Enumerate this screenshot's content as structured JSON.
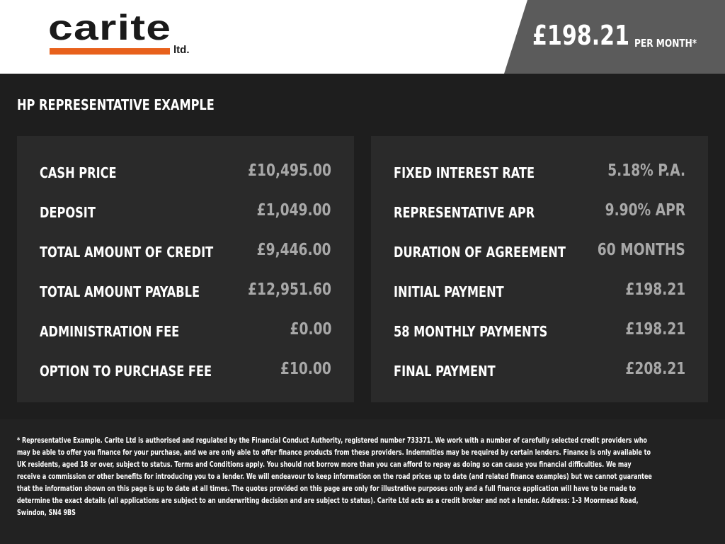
{
  "brand": {
    "name": "carite",
    "suffix": "ltd.",
    "accent": "#e8611c"
  },
  "header": {
    "price": "£198.21",
    "per_month": "PER MONTH*"
  },
  "title": "HP REPRESENTATIVE EXAMPLE",
  "left": [
    {
      "label": "CASH PRICE",
      "value": "£10,495.00"
    },
    {
      "label": "DEPOSIT",
      "value": "£1,049.00"
    },
    {
      "label": "TOTAL AMOUNT OF CREDIT",
      "value": "£9,446.00"
    },
    {
      "label": "TOTAL AMOUNT PAYABLE",
      "value": "£12,951.60"
    },
    {
      "label": "ADMINISTRATION FEE",
      "value": "£0.00"
    },
    {
      "label": "OPTION TO PURCHASE FEE",
      "value": "£10.00"
    }
  ],
  "right": [
    {
      "label": "FIXED INTEREST RATE",
      "value": "5.18% P.A."
    },
    {
      "label": "REPRESENTATIVE APR",
      "value": "9.90% APR"
    },
    {
      "label": "DURATION OF AGREEMENT",
      "value": "60 MONTHS"
    },
    {
      "label": "INITIAL PAYMENT",
      "value": "£198.21"
    },
    {
      "label": "58 MONTHLY PAYMENTS",
      "value": "£198.21"
    },
    {
      "label": "FINAL PAYMENT",
      "value": "£208.21"
    }
  ],
  "disclaimer": "* Representative Example. Carite Ltd is authorised and regulated by the Financial Conduct Authority, registered number 733371. We work with a number of carefully selected credit providers who may be able to offer you finance for your purchase, and we are only able to offer finance products from these providers. Indemnities may be required by certain lenders. Finance is only available to UK residents, aged 18 or over, subject to status. Terms and Conditions apply. You should not borrow more than you can afford to repay as doing so can cause you financial difficulties. We may receive a commission or other benefits for introducing you to a lender. We will endeavour to keep information on the road prices up to date (and related finance examples) but we cannot guarantee that the information shown on this page is up to date at all times. The quotes provided on this page are only for illustrative purposes only and a full finance application will have to be made to determine the exact details (all applications are subject to an underwriting decision and are subject to status). Carite Ltd acts as a credit broker and not a lender. Address: 1-3 Moormead Road, Swindon, SN4 9BS"
}
